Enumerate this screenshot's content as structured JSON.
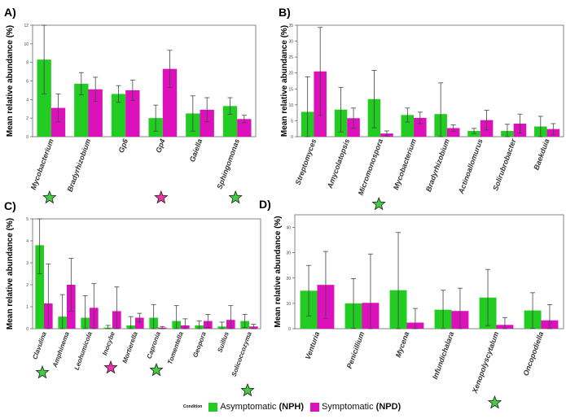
{
  "colors": {
    "asymptomatic": "#22cc22",
    "symptomatic": "#dd11bb",
    "star_green": "#44cc44",
    "star_magenta": "#ee33aa"
  },
  "legend": {
    "title": "Condition",
    "asymptomatic_label": "Asymptomatic",
    "asymptomatic_code": "(NPH)",
    "symptomatic_label": "Symptomatic",
    "symptomatic_code": "(NPD)"
  },
  "chart_data": [
    {
      "panel": "A)",
      "type": "bar",
      "ylabel": "Mean relative abundance (%)",
      "ylim": [
        0,
        12
      ],
      "yticks": [
        0,
        2,
        4,
        6,
        8,
        10,
        12
      ],
      "categories": [
        "Mycobacterium",
        "Bradyrhizobium",
        "Gp6",
        "Gp4",
        "Gaiella",
        "Sphingomonas"
      ],
      "series": [
        {
          "name": "Asymptomatic (NPH)",
          "values": [
            8.3,
            5.7,
            4.6,
            2.0,
            2.5,
            3.3
          ],
          "errors": [
            3.7,
            1.2,
            0.9,
            1.4,
            1.9,
            0.9
          ]
        },
        {
          "name": "Symptomatic (NPD)",
          "values": [
            3.1,
            5.1,
            5.0,
            7.3,
            2.9,
            1.9
          ],
          "errors": [
            1.5,
            1.3,
            1.1,
            2.0,
            1.3,
            0.4
          ]
        }
      ],
      "stars": [
        "green",
        "",
        "",
        "magenta",
        "",
        "green"
      ]
    },
    {
      "panel": "B)",
      "type": "bar",
      "ylabel": "Mean relative abundance (%)",
      "ylim": [
        0,
        35
      ],
      "yticks": [
        0,
        5,
        10,
        15,
        20,
        25,
        30,
        35
      ],
      "categories": [
        "Streptomyces",
        "Amycolatopsis",
        "Micromonospora",
        "Mycobacterium",
        "Bradyrhizobium",
        "Actinoallomurus",
        "Solirubrobacter",
        "Baekduia"
      ],
      "series": [
        {
          "name": "Asymptomatic (NPH)",
          "values": [
            7.8,
            8.5,
            11.8,
            6.8,
            7.1,
            1.8,
            1.8,
            3.2
          ],
          "errors": [
            11.0,
            7.0,
            9.0,
            2.2,
            9.8,
            0.8,
            2.1,
            3.2
          ]
        },
        {
          "name": "Symptomatic (NPD)",
          "values": [
            20.5,
            5.8,
            1.0,
            5.9,
            2.7,
            5.2,
            4.1,
            2.4
          ],
          "errors": [
            13.8,
            3.2,
            0.8,
            1.8,
            1.0,
            3.1,
            3.0,
            1.7
          ]
        }
      ],
      "stars": [
        "",
        "",
        "green",
        "",
        "",
        "",
        "",
        ""
      ]
    },
    {
      "panel": "C)",
      "type": "bar",
      "ylabel": "Mean relative abundance (%)",
      "ylim": [
        0,
        5
      ],
      "yticks": [
        0,
        1,
        2,
        3,
        4,
        5
      ],
      "categories": [
        "Clavulina",
        "Amphinema",
        "Leohumicola",
        "Inocybe",
        "Mortierella",
        "Capronia",
        "Tomentella",
        "Geopora",
        "Suillus",
        "Solicoccozyma"
      ],
      "series": [
        {
          "name": "Asymptomatic (NPH)",
          "values": [
            3.8,
            0.55,
            0.5,
            0.05,
            0.15,
            0.5,
            0.35,
            0.15,
            0.1,
            0.35
          ],
          "errors": [
            1.3,
            1.0,
            1.0,
            0.1,
            0.4,
            0.6,
            0.7,
            0.2,
            0.2,
            0.3
          ]
        },
        {
          "name": "Symptomatic (NPD)",
          "values": [
            1.15,
            2.0,
            0.95,
            0.8,
            0.5,
            0.05,
            0.15,
            0.35,
            0.4,
            0.1
          ],
          "errors": [
            1.8,
            1.2,
            1.1,
            1.1,
            0.2,
            0.05,
            0.3,
            0.3,
            0.65,
            0.1
          ]
        }
      ],
      "stars": [
        "green",
        "",
        "",
        "magenta",
        "",
        "green",
        "",
        "",
        "",
        "green"
      ]
    },
    {
      "panel": "D)",
      "type": "bar",
      "ylabel": "Mean relative abundance (%)",
      "ylim": [
        0,
        45
      ],
      "yticks": [
        0,
        10,
        20,
        30,
        40
      ],
      "categories": [
        "Venturia",
        "Penicillium",
        "Mycena",
        "Infundichalara",
        "Xenopolyscytalum",
        "Oncopodiella"
      ],
      "series": [
        {
          "name": "Asymptomatic (NPH)",
          "values": [
            15.0,
            10.0,
            15.2,
            7.5,
            12.3,
            7.2
          ],
          "errors": [
            10.0,
            9.8,
            22.8,
            7.7,
            11.1,
            7.0
          ]
        },
        {
          "name": "Symptomatic (NPD)",
          "values": [
            17.3,
            10.2,
            2.4,
            7.0,
            1.5,
            3.3
          ],
          "errors": [
            13.2,
            19.3,
            5.6,
            9.0,
            2.9,
            6.2
          ]
        }
      ],
      "stars": [
        "",
        "",
        "",
        "",
        "green",
        ""
      ]
    }
  ]
}
